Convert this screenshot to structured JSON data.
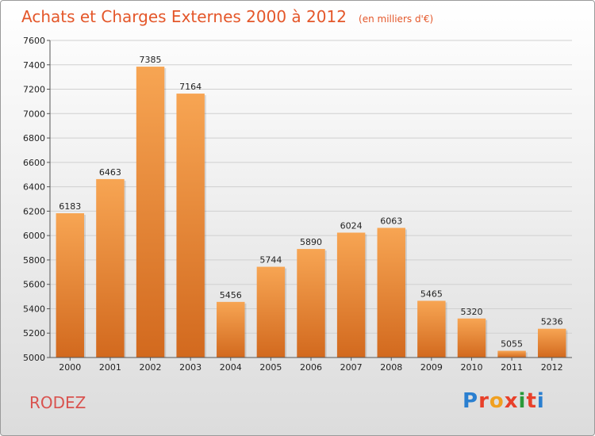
{
  "header": {
    "title": "Achats et Charges Externes 2000 à 2012",
    "unit": "(en milliers d'€)"
  },
  "footer": {
    "city": "RODEZ",
    "logo_text": "Proxiti",
    "logo_colors": [
      "#2a7fd0",
      "#e8402a",
      "#f0a020",
      "#e8402a",
      "#2a9a3a",
      "#e8402a",
      "#2a7fd0"
    ]
  },
  "colors": {
    "bar_top": "#f7a553",
    "bar_bottom": "#d2691e",
    "title": "#e4572a",
    "city": "#d9534f"
  },
  "chart_data": {
    "type": "bar",
    "title": "Achats et Charges Externes 2000 à 2012",
    "subtitle": "(en milliers d'€)",
    "xlabel": "",
    "ylabel": "",
    "categories": [
      "2000",
      "2001",
      "2002",
      "2003",
      "2004",
      "2005",
      "2006",
      "2007",
      "2008",
      "2009",
      "2010",
      "2011",
      "2012"
    ],
    "values": [
      6183,
      6463,
      7385,
      7164,
      5456,
      5744,
      5890,
      6024,
      6063,
      5465,
      5320,
      5055,
      5236
    ],
    "ylim": [
      5000,
      7600
    ],
    "yticks": [
      5000,
      5200,
      5400,
      5600,
      5800,
      6000,
      6200,
      6400,
      6600,
      6800,
      7000,
      7200,
      7400,
      7600
    ],
    "grid": true,
    "legend": "none"
  }
}
